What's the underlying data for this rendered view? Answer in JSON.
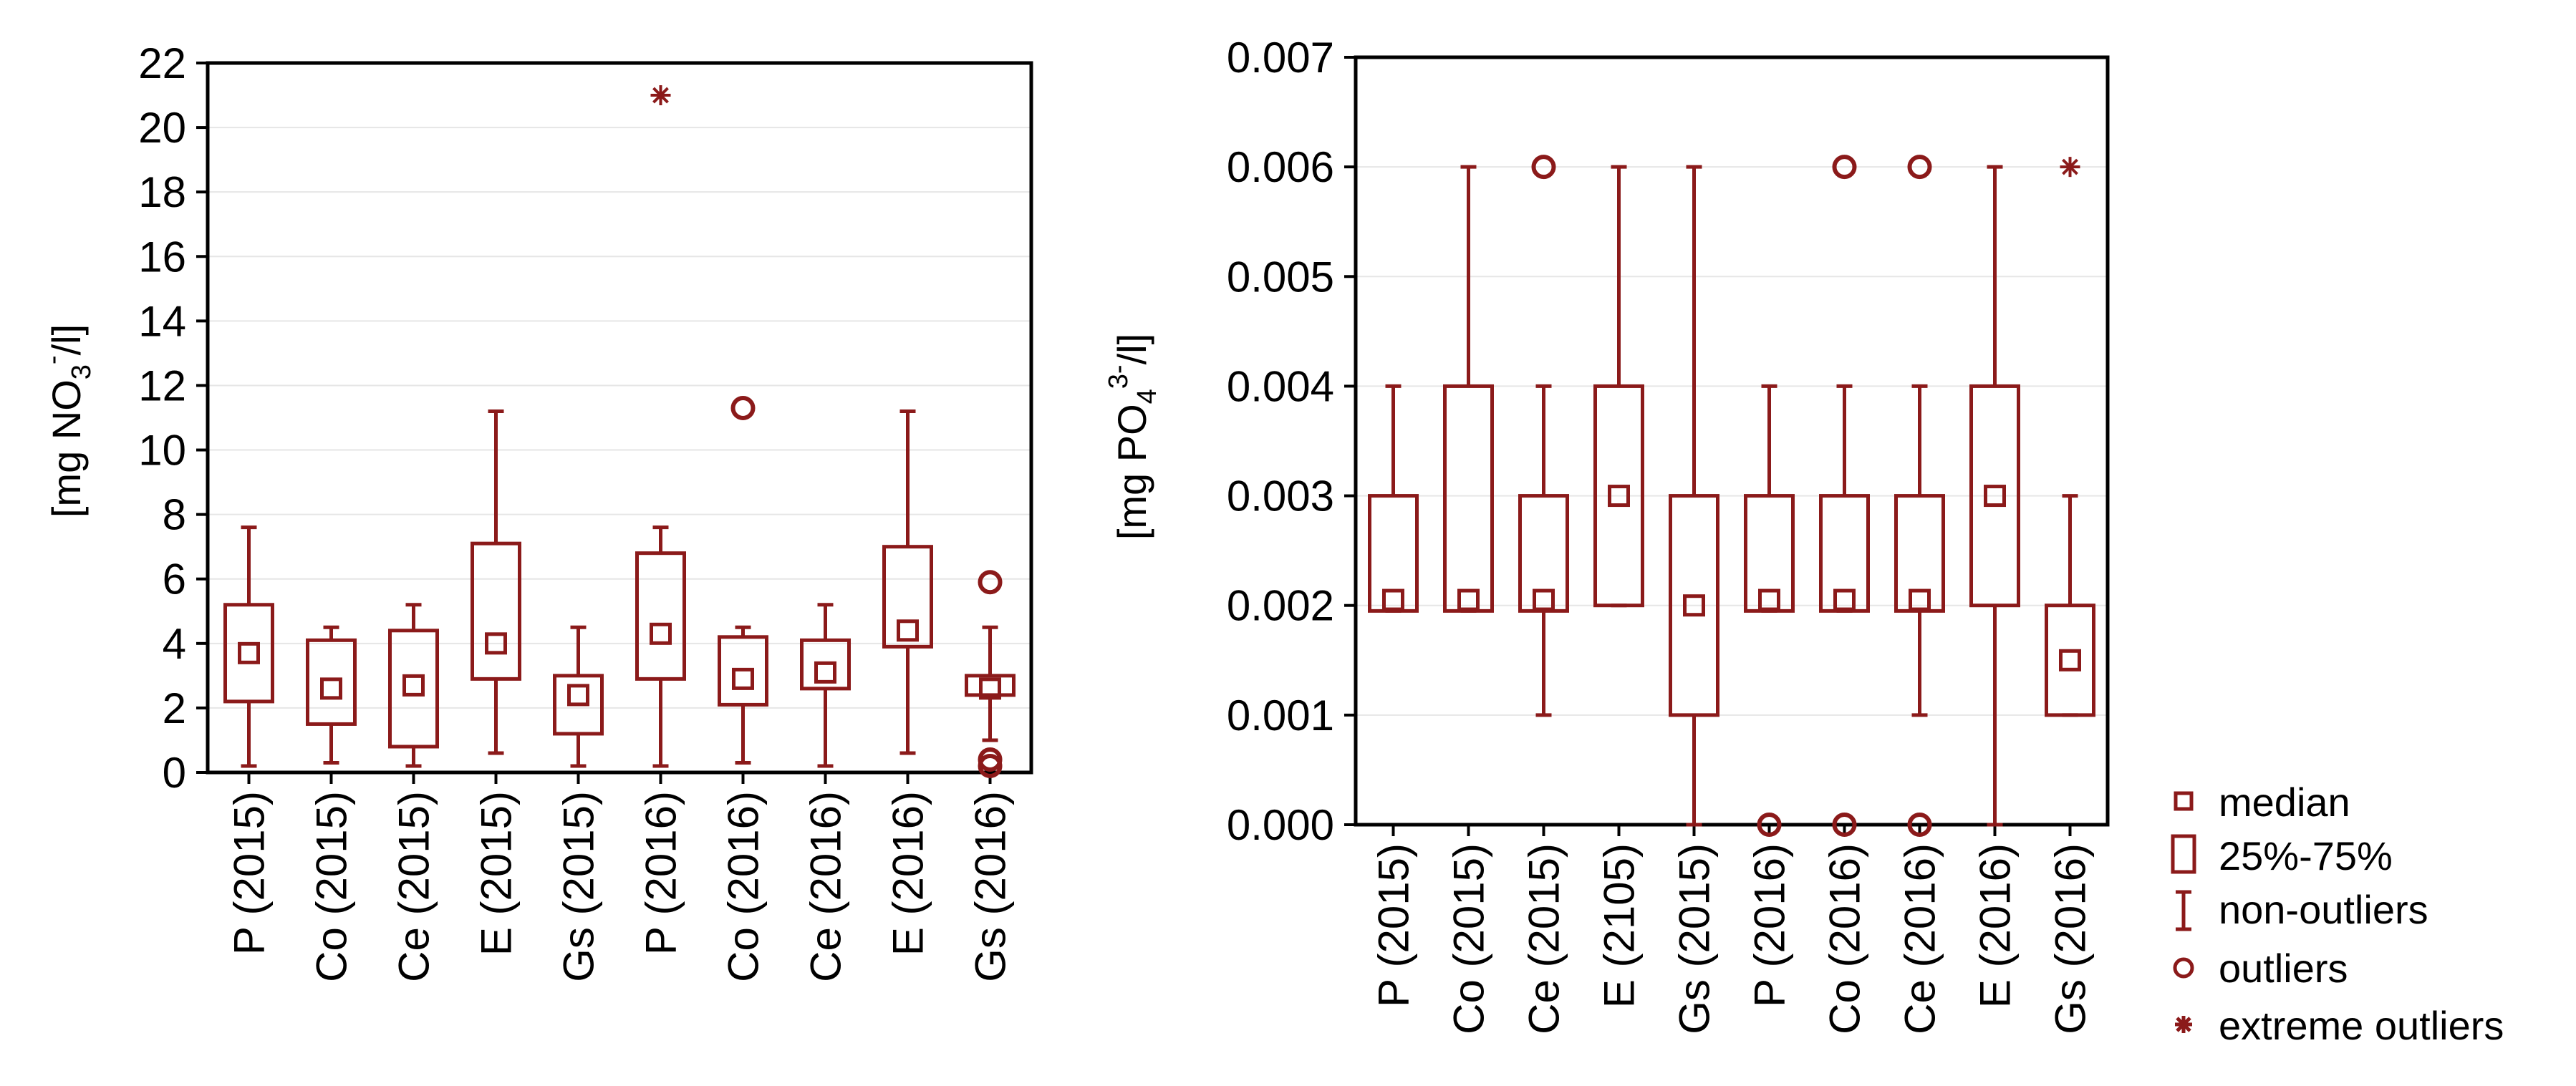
{
  "colors": {
    "mark": "#8b1a1a",
    "axis": "#000000",
    "grid": "#e6e6e6"
  },
  "chart_data": [
    {
      "type": "box",
      "ylabel": {
        "prefix": "[mg NO",
        "sub": "3",
        "sup": "-",
        "suffix": "/l]"
      },
      "ylim": [
        0,
        22
      ],
      "yticks": [
        "0",
        "2",
        "4",
        "6",
        "8",
        "10",
        "12",
        "14",
        "16",
        "18",
        "20",
        "22"
      ],
      "categories": [
        "P (2015)",
        "Co (2015)",
        "Ce (2015)",
        "E (2015)",
        "Gs (2015)",
        "P (2016)",
        "Co (2016)",
        "Ce (2016)",
        "E (2016)",
        "Gs (2016)"
      ],
      "boxes": [
        {
          "q1": 2.2,
          "median": 3.7,
          "q3": 5.2,
          "min": 0.2,
          "max": 7.6,
          "outliers": [],
          "extremes": []
        },
        {
          "q1": 1.5,
          "median": 2.6,
          "q3": 4.1,
          "min": 0.3,
          "max": 4.5,
          "outliers": [],
          "extremes": []
        },
        {
          "q1": 0.8,
          "median": 2.7,
          "q3": 4.4,
          "min": 0.2,
          "max": 5.2,
          "outliers": [],
          "extremes": []
        },
        {
          "q1": 2.9,
          "median": 4.0,
          "q3": 7.1,
          "min": 0.6,
          "max": 11.2,
          "outliers": [],
          "extremes": []
        },
        {
          "q1": 1.2,
          "median": 2.4,
          "q3": 3.0,
          "min": 0.2,
          "max": 4.5,
          "outliers": [],
          "extremes": []
        },
        {
          "q1": 2.9,
          "median": 4.3,
          "q3": 6.8,
          "min": 0.2,
          "max": 7.6,
          "outliers": [],
          "extremes": [
            21.0
          ]
        },
        {
          "q1": 2.1,
          "median": 2.9,
          "q3": 4.2,
          "min": 0.3,
          "max": 4.5,
          "outliers": [
            11.3
          ],
          "extremes": []
        },
        {
          "q1": 2.6,
          "median": 3.1,
          "q3": 4.1,
          "min": 0.2,
          "max": 5.2,
          "outliers": [],
          "extremes": []
        },
        {
          "q1": 3.9,
          "median": 4.4,
          "q3": 7.0,
          "min": 0.6,
          "max": 11.2,
          "outliers": [],
          "extremes": []
        },
        {
          "q1": 2.4,
          "median": 2.6,
          "q3": 3.0,
          "min": 1.0,
          "max": 4.5,
          "outliers": [
            5.9,
            0.4,
            0.2
          ],
          "extremes": []
        }
      ]
    },
    {
      "type": "box",
      "ylabel": {
        "prefix": "[mg PO",
        "sub": "4",
        "sup": "3-",
        "suffix": "/l]"
      },
      "ylim": [
        0,
        0.007
      ],
      "yticks": [
        "0.000",
        "0.001",
        "0.002",
        "0.003",
        "0.004",
        "0.005",
        "0.006",
        "0.007"
      ],
      "categories": [
        "P (2015)",
        "Co (2015)",
        "Ce (2015)",
        "E (2105)",
        "Gs (2015)",
        "P (2016)",
        "Co (2016)",
        "Ce (2016)",
        "E (2016)",
        "Gs (2016)"
      ],
      "boxes": [
        {
          "q1": 0.00195,
          "median": 0.00205,
          "q3": 0.003,
          "min": 0.00195,
          "max": 0.004,
          "outliers": [],
          "extremes": []
        },
        {
          "q1": 0.00195,
          "median": 0.00205,
          "q3": 0.004,
          "min": 0.00195,
          "max": 0.006,
          "outliers": [],
          "extremes": []
        },
        {
          "q1": 0.00195,
          "median": 0.00205,
          "q3": 0.003,
          "min": 0.001,
          "max": 0.004,
          "outliers": [
            0.006
          ],
          "extremes": []
        },
        {
          "q1": 0.002,
          "median": 0.003,
          "q3": 0.004,
          "min": 0.002,
          "max": 0.006,
          "outliers": [],
          "extremes": []
        },
        {
          "q1": 0.001,
          "median": 0.002,
          "q3": 0.003,
          "min": 0.0,
          "max": 0.006,
          "outliers": [],
          "extremes": []
        },
        {
          "q1": 0.00195,
          "median": 0.00205,
          "q3": 0.003,
          "min": 0.00195,
          "max": 0.004,
          "outliers": [
            0.0
          ],
          "extremes": []
        },
        {
          "q1": 0.00195,
          "median": 0.00205,
          "q3": 0.003,
          "min": 0.00195,
          "max": 0.004,
          "outliers": [
            0.006,
            0.0
          ],
          "extremes": []
        },
        {
          "q1": 0.00195,
          "median": 0.00205,
          "q3": 0.003,
          "min": 0.001,
          "max": 0.004,
          "outliers": [
            0.006,
            0.0
          ],
          "extremes": []
        },
        {
          "q1": 0.002,
          "median": 0.003,
          "q3": 0.004,
          "min": 0.0,
          "max": 0.006,
          "outliers": [],
          "extremes": []
        },
        {
          "q1": 0.001,
          "median": 0.0015,
          "q3": 0.002,
          "min": 0.001,
          "max": 0.003,
          "outliers": [],
          "extremes": [
            0.006
          ]
        }
      ]
    }
  ],
  "legend": {
    "median": "median",
    "box": "25%-75%",
    "whisker": "non-outliers",
    "outlier": "outliers",
    "extreme": "extreme outliers"
  }
}
